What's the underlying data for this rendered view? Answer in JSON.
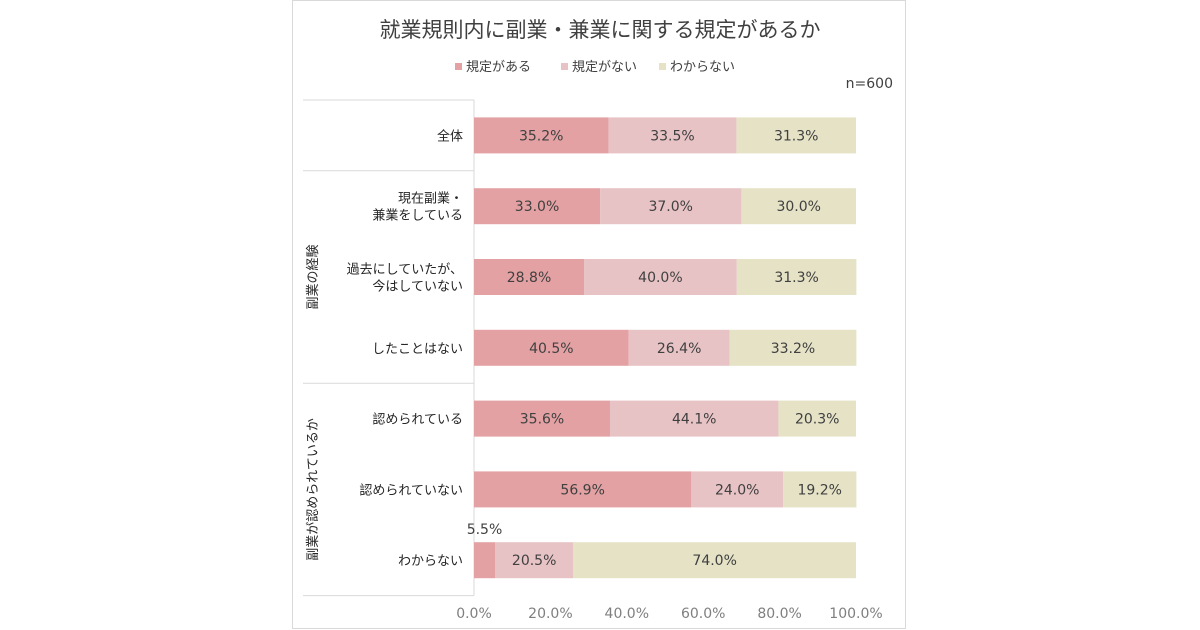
{
  "chart_data": {
    "type": "bar",
    "orientation": "horizontal",
    "stacked": "percent",
    "title": "就業規則内に副業・兼業に関する規定があるか",
    "sample_size": "n=600",
    "legend_position": "top",
    "categories": [
      [
        "全体"
      ],
      [
        "現在副業・",
        "兼業をしている"
      ],
      [
        "過去にしていたが、",
        "今はしていない"
      ],
      [
        "したことはない"
      ],
      [
        "認められている"
      ],
      [
        "認められていない"
      ],
      [
        "わからない"
      ]
    ],
    "groups": [
      {
        "label": "副業の経験",
        "start": 1,
        "end": 3
      },
      {
        "label": "副業が認められているか",
        "start": 4,
        "end": 6
      }
    ],
    "series": [
      {
        "name": "規定がある",
        "color": "#e3a1a3",
        "values": [
          35.2,
          33.0,
          28.8,
          40.5,
          35.6,
          56.9,
          5.5
        ],
        "labels": [
          "35.2%",
          "33.0%",
          "28.8%",
          "40.5%",
          "35.6%",
          "56.9%",
          "5.5%"
        ]
      },
      {
        "name": "規定がない",
        "color": "#e8c3c5",
        "values": [
          33.5,
          37.0,
          40.0,
          26.4,
          44.1,
          24.0,
          20.5
        ],
        "labels": [
          "33.5%",
          "37.0%",
          "40.0%",
          "26.4%",
          "44.1%",
          "24.0%",
          "20.5%"
        ]
      },
      {
        "name": "わからない",
        "color": "#e5e2c6",
        "values": [
          31.3,
          30.0,
          31.3,
          33.2,
          20.3,
          19.2,
          74.0
        ],
        "labels": [
          "31.3%",
          "30.0%",
          "31.3%",
          "33.2%",
          "20.3%",
          "19.2%",
          "74.0%"
        ]
      }
    ],
    "xlim": [
      0,
      100
    ],
    "xticks": [
      "0.0%",
      "20.0%",
      "40.0%",
      "60.0%",
      "80.0%",
      "100.0%"
    ],
    "grid": false
  }
}
